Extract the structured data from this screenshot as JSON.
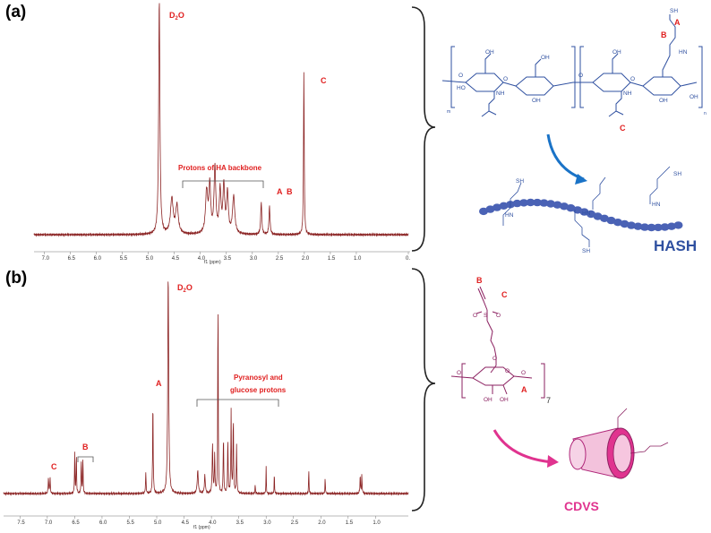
{
  "colors": {
    "spectrum": "#8b2323",
    "annotation": "#e02020",
    "hash_blue": "#2f50a0",
    "bead_blue": "#4a62b5",
    "cd_magenta": "#e0338f",
    "cd_purple": "#8b2060"
  },
  "panel_a": {
    "label": "(a)",
    "chart_data": {
      "type": "line",
      "xlabel": "f1 (ppm)",
      "xlim": [
        7.2,
        0.0
      ],
      "reversed_x": true,
      "x_ticks": [
        "7.0",
        "6.5",
        "6.0",
        "5.5",
        "5.0",
        "4.5",
        "4.0",
        "3.5",
        "3.0",
        "2.5",
        "2.0",
        "1.5",
        "1.0",
        "0."
      ],
      "peaks": [
        {
          "ppm": 4.79,
          "height": 1.0,
          "width": 0.014
        },
        {
          "ppm": 4.55,
          "height": 0.15,
          "width": 0.03
        },
        {
          "ppm": 4.45,
          "height": 0.12,
          "width": 0.03
        },
        {
          "ppm": 3.88,
          "height": 0.18,
          "width": 0.025
        },
        {
          "ppm": 3.82,
          "height": 0.2,
          "width": 0.02
        },
        {
          "ppm": 3.72,
          "height": 0.28,
          "width": 0.02
        },
        {
          "ppm": 3.62,
          "height": 0.18,
          "width": 0.02
        },
        {
          "ppm": 3.55,
          "height": 0.2,
          "width": 0.02
        },
        {
          "ppm": 3.48,
          "height": 0.17,
          "width": 0.02
        },
        {
          "ppm": 3.36,
          "height": 0.16,
          "width": 0.025
        },
        {
          "ppm": 2.83,
          "height": 0.14,
          "width": 0.012
        },
        {
          "ppm": 2.67,
          "height": 0.12,
          "width": 0.012
        },
        {
          "ppm": 2.01,
          "height": 0.7,
          "width": 0.008
        }
      ],
      "annotations": {
        "d2o_main": "D",
        "d2o_sub": "2",
        "d2o_tail": "O",
        "backbone": "Protons of HA backbone",
        "peak_A": "A",
        "peak_B": "B",
        "peak_C": "C"
      }
    }
  },
  "panel_b": {
    "label": "(b)",
    "chart_data": {
      "type": "line",
      "xlabel": "f1 (ppm)",
      "xlim": [
        7.8,
        0.4
      ],
      "reversed_x": true,
      "x_ticks": [
        "7.5",
        "7.0",
        "6.5",
        "6.0",
        "5.5",
        "5.0",
        "4.5",
        "4.0",
        "3.5",
        "3.0",
        "2.5",
        "2.0",
        "1.5",
        "1.0"
      ],
      "peaks": [
        {
          "ppm": 6.98,
          "height": 0.07,
          "width": 0.006
        },
        {
          "ppm": 6.95,
          "height": 0.07,
          "width": 0.006
        },
        {
          "ppm": 6.5,
          "height": 0.18,
          "width": 0.005
        },
        {
          "ppm": 6.47,
          "height": 0.18,
          "width": 0.005
        },
        {
          "ppm": 6.38,
          "height": 0.16,
          "width": 0.005
        },
        {
          "ppm": 6.35,
          "height": 0.16,
          "width": 0.005
        },
        {
          "ppm": 5.2,
          "height": 0.09,
          "width": 0.006
        },
        {
          "ppm": 5.07,
          "height": 0.42,
          "width": 0.006
        },
        {
          "ppm": 4.79,
          "height": 1.0,
          "width": 0.01
        },
        {
          "ppm": 4.25,
          "height": 0.1,
          "width": 0.012
        },
        {
          "ppm": 4.12,
          "height": 0.08,
          "width": 0.01
        },
        {
          "ppm": 3.98,
          "height": 0.22,
          "width": 0.008
        },
        {
          "ppm": 3.94,
          "height": 0.18,
          "width": 0.006
        },
        {
          "ppm": 3.88,
          "height": 0.92,
          "width": 0.005
        },
        {
          "ppm": 3.78,
          "height": 0.26,
          "width": 0.006
        },
        {
          "ppm": 3.7,
          "height": 0.24,
          "width": 0.006
        },
        {
          "ppm": 3.64,
          "height": 0.37,
          "width": 0.006
        },
        {
          "ppm": 3.6,
          "height": 0.34,
          "width": 0.006
        },
        {
          "ppm": 3.54,
          "height": 0.22,
          "width": 0.006
        },
        {
          "ppm": 3.2,
          "height": 0.04,
          "width": 0.005
        },
        {
          "ppm": 3.0,
          "height": 0.12,
          "width": 0.004
        },
        {
          "ppm": 2.85,
          "height": 0.1,
          "width": 0.004
        },
        {
          "ppm": 2.22,
          "height": 0.12,
          "width": 0.004
        },
        {
          "ppm": 1.92,
          "height": 0.08,
          "width": 0.004
        },
        {
          "ppm": 1.28,
          "height": 0.08,
          "width": 0.006
        },
        {
          "ppm": 1.25,
          "height": 0.08,
          "width": 0.006
        }
      ],
      "annotations": {
        "d2o_main": "D",
        "d2o_sub": "2",
        "d2o_tail": "O",
        "pyranosyl_1": "Pyranosyl and",
        "pyranosyl_2": "glucose protons",
        "peak_A": "A",
        "peak_B": "B",
        "peak_C": "C"
      }
    }
  },
  "hash_scheme": {
    "label": "HASH",
    "A": "A",
    "B": "B",
    "C": "C",
    "m": "m",
    "n": "n",
    "atoms": {
      "sh": "SH",
      "nh": "NH",
      "hn": "HN",
      "o": "O",
      "oh": "OH",
      "ho": "HO"
    }
  },
  "cdvs_scheme": {
    "label": "CDVS",
    "A": "A",
    "B": "B",
    "C": "C",
    "seven": "7",
    "atoms": {
      "s": "S",
      "o": "O",
      "oh": "OH"
    }
  }
}
